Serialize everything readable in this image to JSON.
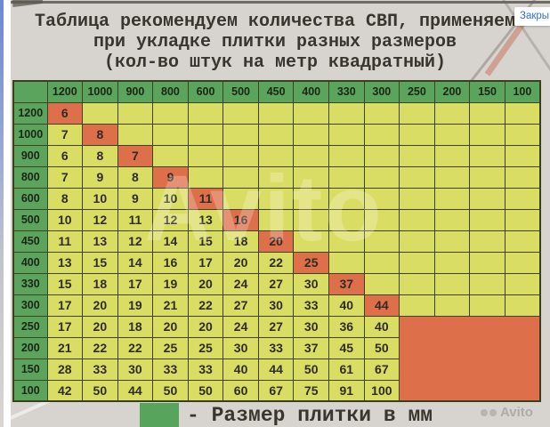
{
  "ui": {
    "close_button_label": "Закры"
  },
  "title": {
    "line1": "Таблица рекомендуем количества СВП, применяем",
    "line2": "при укладке плитки разных размеров",
    "line3": "(кол-во штук на метр квадратный)"
  },
  "table": {
    "col_headers": [
      "1200",
      "1000",
      "900",
      "800",
      "600",
      "500",
      "450",
      "400",
      "330",
      "300",
      "250",
      "200",
      "150",
      "100"
    ],
    "row_headers": [
      "1200",
      "1000",
      "900",
      "800",
      "600",
      "500",
      "450",
      "400",
      "330",
      "300",
      "250",
      "200",
      "150",
      "100"
    ],
    "rows": [
      [
        "6",
        "",
        "",
        "",
        "",
        "",
        "",
        "",
        "",
        "",
        "",
        "",
        "",
        ""
      ],
      [
        "7",
        "8",
        "",
        "",
        "",
        "",
        "",
        "",
        "",
        "",
        "",
        "",
        "",
        ""
      ],
      [
        "6",
        "8",
        "7",
        "",
        "",
        "",
        "",
        "",
        "",
        "",
        "",
        "",
        "",
        ""
      ],
      [
        "7",
        "9",
        "8",
        "9",
        "",
        "",
        "",
        "",
        "",
        "",
        "",
        "",
        "",
        ""
      ],
      [
        "8",
        "10",
        "9",
        "10",
        "11",
        "",
        "",
        "",
        "",
        "",
        "",
        "",
        "",
        ""
      ],
      [
        "10",
        "12",
        "11",
        "12",
        "13",
        "16",
        "",
        "",
        "",
        "",
        "",
        "",
        "",
        ""
      ],
      [
        "11",
        "13",
        "12",
        "14",
        "15",
        "18",
        "20",
        "",
        "",
        "",
        "",
        "",
        "",
        ""
      ],
      [
        "13",
        "15",
        "14",
        "16",
        "17",
        "20",
        "22",
        "25",
        "",
        "",
        "",
        "",
        "",
        ""
      ],
      [
        "15",
        "18",
        "17",
        "19",
        "20",
        "24",
        "27",
        "30",
        "37",
        "",
        "",
        "",
        "",
        ""
      ],
      [
        "17",
        "20",
        "19",
        "21",
        "22",
        "27",
        "30",
        "33",
        "40",
        "44",
        "",
        "",
        "",
        ""
      ],
      [
        "17",
        "20",
        "18",
        "20",
        "20",
        "24",
        "27",
        "30",
        "36",
        "40"
      ],
      [
        "21",
        "22",
        "22",
        "25",
        "25",
        "30",
        "33",
        "37",
        "45",
        "50"
      ],
      [
        "28",
        "33",
        "30",
        "33",
        "33",
        "40",
        "44",
        "50",
        "61",
        "67"
      ],
      [
        "42",
        "50",
        "44",
        "50",
        "50",
        "60",
        "67",
        "75",
        "91",
        "100"
      ]
    ],
    "orange_block": {
      "row_start": 10,
      "col_start": 10
    }
  },
  "legend": {
    "label": "- Размер плитки в мм"
  },
  "watermarks": {
    "center": "Avito",
    "corner": "Avito"
  },
  "colors": {
    "header_green": "#5ba45e",
    "cell_yellow": "#dadd63",
    "cell_orange": "#dd6f4b",
    "grid_line": "#3f421f",
    "photo_background": "#d7d3ce",
    "close_link_blue": "#2f71d8"
  }
}
